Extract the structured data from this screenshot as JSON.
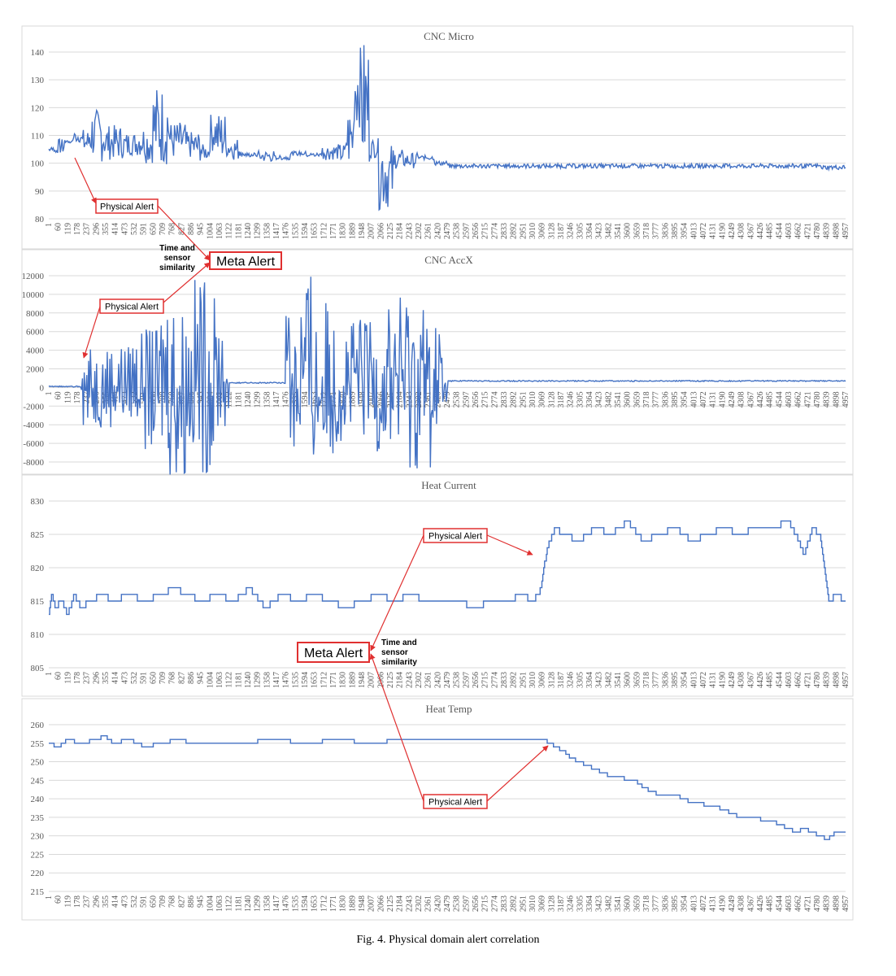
{
  "caption": "Fig. 4. Physical domain alert correlation",
  "colors": {
    "series": "#4472c4",
    "alert": "#e03030",
    "grid": "#d9d9d9"
  },
  "x_ticks": [
    "1",
    "60",
    "119",
    "178",
    "237",
    "296",
    "355",
    "414",
    "473",
    "532",
    "591",
    "650",
    "709",
    "768",
    "827",
    "886",
    "945",
    "1004",
    "1063",
    "1122",
    "1181",
    "1240",
    "1299",
    "1358",
    "1417",
    "1476",
    "1535",
    "1594",
    "1653",
    "1712",
    "1771",
    "1830",
    "1889",
    "1948",
    "2007",
    "2066",
    "2125",
    "2184",
    "2243",
    "2302",
    "2361",
    "2420",
    "2479",
    "2538",
    "2597",
    "2656",
    "2715",
    "2774",
    "2833",
    "2892",
    "2951",
    "3010",
    "3069",
    "3128",
    "3187",
    "3246",
    "3305",
    "3364",
    "3423",
    "3482",
    "3541",
    "3600",
    "3659",
    "3718",
    "3777",
    "3836",
    "3895",
    "3954",
    "4013",
    "4072",
    "4131",
    "4190",
    "4249",
    "4308",
    "4367",
    "4426",
    "4485",
    "4544",
    "4603",
    "4662",
    "4721",
    "4780",
    "4839",
    "4898",
    "4957"
  ],
  "annotations": {
    "physical_alert_label": "Physical Alert",
    "meta_alert_label": "Meta Alert",
    "similarity_note": [
      "Time and",
      "sensor",
      "similarity"
    ]
  },
  "chart_data": [
    {
      "type": "line",
      "title": "CNC Micro",
      "xlim": [
        1,
        4957
      ],
      "ylim": [
        80,
        140
      ],
      "yticks": [
        80,
        90,
        100,
        110,
        120,
        130,
        140
      ],
      "grid": true,
      "series": [
        {
          "x": [
            1,
            40,
            60,
            100,
            150,
            200,
            250,
            300,
            350,
            400,
            450,
            500,
            550,
            600,
            650,
            700,
            750,
            800,
            850,
            900,
            950,
            1000,
            1050,
            1100,
            1150,
            1200,
            1300,
            1400,
            1500,
            1600,
            1700,
            1800,
            1850,
            1900,
            1948,
            2000,
            2050,
            2100,
            2150,
            2200,
            2300,
            2400,
            2479,
            2600,
            2800,
            3000,
            3200,
            3400,
            3600,
            3800,
            4000,
            4200,
            4400,
            4600,
            4800,
            4957
          ],
          "y": [
            105,
            105,
            104,
            108,
            108,
            111,
            104,
            117,
            103,
            112,
            103,
            110,
            104,
            112,
            102,
            124,
            103,
            113,
            103,
            110,
            102,
            106,
            116,
            103,
            108,
            102,
            104,
            101,
            103,
            104,
            102,
            106,
            101,
            117,
            138,
            103,
            108,
            87,
            104,
            99,
            103,
            101,
            99,
            99,
            99,
            99,
            99,
            99,
            99,
            99,
            99,
            99,
            99,
            99,
            99,
            98
          ]
        }
      ]
    },
    {
      "type": "line",
      "title": "CNC AccX",
      "xlim": [
        1,
        4957
      ],
      "ylim": [
        -8000,
        12000
      ],
      "yticks": [
        -8000,
        -6000,
        -4000,
        -2000,
        0,
        2000,
        4000,
        6000,
        8000,
        10000,
        12000
      ],
      "grid": true,
      "series": [
        {
          "x": [
            1,
            200,
            210,
            300,
            400,
            500,
            600,
            700,
            750,
            800,
            850,
            900,
            950,
            1000,
            1050,
            1100,
            1122,
            1476,
            1500,
            1550,
            1600,
            1650,
            1700,
            1750,
            1800,
            1900,
            2000,
            2100,
            2200,
            2250,
            2300,
            2350,
            2400,
            2450,
            2479,
            2500,
            3000,
            4000,
            4957
          ],
          "y": [
            100,
            100,
            3000,
            -3000,
            3500,
            -2500,
            4500,
            -4800,
            8000,
            -7200,
            6500,
            -5000,
            9000,
            -6200,
            7000,
            -3000,
            500,
            500,
            8000,
            -5500,
            9800,
            -6500,
            7000,
            -5000,
            5500,
            -4000,
            6000,
            -5000,
            7800,
            -6500,
            8500,
            -6800,
            5500,
            -2500,
            700,
            700,
            700,
            700,
            700
          ]
        }
      ]
    },
    {
      "type": "line",
      "title": "Heat Current",
      "xlim": [
        1,
        4957
      ],
      "ylim": [
        805,
        830
      ],
      "yticks": [
        805,
        810,
        815,
        820,
        825,
        830
      ],
      "grid": true,
      "series": [
        {
          "x": [
            1,
            20,
            40,
            80,
            120,
            160,
            200,
            260,
            330,
            400,
            500,
            600,
            700,
            780,
            860,
            950,
            1050,
            1150,
            1250,
            1350,
            1450,
            1550,
            1650,
            1750,
            1850,
            1950,
            2050,
            2150,
            2250,
            2350,
            2450,
            2550,
            2650,
            2750,
            2850,
            2950,
            3000,
            3050,
            3069,
            3100,
            3150,
            3200,
            3300,
            3400,
            3500,
            3600,
            3700,
            3800,
            3900,
            4000,
            4100,
            4200,
            4300,
            4400,
            4500,
            4600,
            4650,
            4700,
            4750,
            4800,
            4850,
            4900,
            4957
          ],
          "y": [
            813,
            816,
            814,
            815,
            813,
            816,
            814,
            815,
            816,
            815,
            816,
            815,
            816,
            817,
            816,
            815,
            816,
            815,
            817,
            814,
            816,
            815,
            816,
            815,
            814,
            815,
            816,
            815,
            816,
            815,
            815,
            815,
            814,
            815,
            815,
            816,
            815,
            816,
            818,
            823,
            826,
            825,
            824,
            826,
            825,
            827,
            824,
            825,
            826,
            824,
            825,
            826,
            825,
            826,
            826,
            827,
            825,
            822,
            826,
            825,
            815,
            816,
            815
          ]
        }
      ]
    },
    {
      "type": "line",
      "title": "Heat Temp",
      "xlim": [
        1,
        4957
      ],
      "ylim": [
        215,
        260
      ],
      "yticks": [
        215,
        220,
        225,
        230,
        235,
        240,
        245,
        250,
        255,
        260
      ],
      "grid": true,
      "series": [
        {
          "x": [
            1,
            60,
            120,
            200,
            300,
            350,
            400,
            500,
            600,
            700,
            800,
            900,
            1000,
            1200,
            1400,
            1600,
            1800,
            2000,
            2200,
            2400,
            2600,
            2800,
            3000,
            3069,
            3128,
            3150,
            3200,
            3250,
            3300,
            3350,
            3400,
            3450,
            3500,
            3550,
            3600,
            3650,
            3700,
            3750,
            3800,
            3850,
            3900,
            3950,
            4000,
            4050,
            4100,
            4150,
            4200,
            4250,
            4300,
            4350,
            4400,
            4450,
            4500,
            4550,
            4600,
            4650,
            4700,
            4750,
            4800,
            4839,
            4870,
            4900,
            4957
          ],
          "y": [
            255,
            254,
            256,
            255,
            256,
            257,
            255,
            256,
            254,
            255,
            256,
            255,
            255,
            255,
            256,
            255,
            256,
            255,
            256,
            256,
            256,
            256,
            256,
            256,
            255,
            254,
            253,
            251,
            250,
            249,
            248,
            247,
            246,
            246,
            245,
            245,
            243,
            242,
            241,
            241,
            241,
            240,
            239,
            239,
            238,
            238,
            237,
            236,
            235,
            235,
            235,
            234,
            234,
            233,
            232,
            231,
            232,
            231,
            230,
            229,
            230,
            231,
            231
          ]
        }
      ]
    }
  ]
}
